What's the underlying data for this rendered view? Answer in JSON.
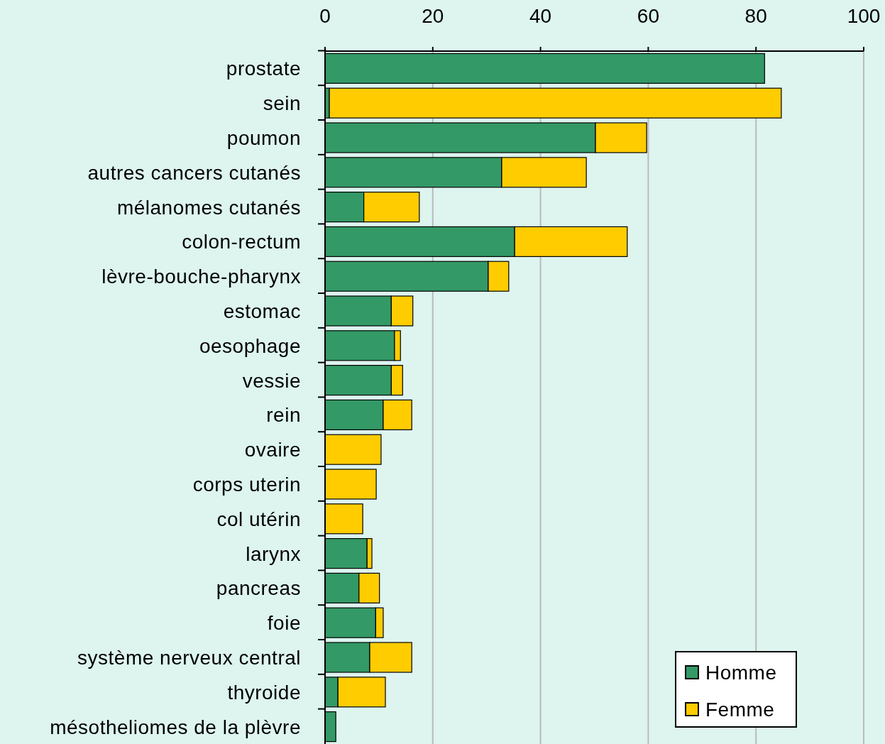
{
  "chart_data": {
    "type": "bar",
    "orientation": "horizontal",
    "stacked": true,
    "categories": [
      "prostate",
      "sein",
      "poumon",
      "autres cancers cutanés",
      "mélanomes cutanés",
      "colon-rectum",
      "lèvre-bouche-pharynx",
      "estomac",
      "oesophage",
      "vessie",
      "rein",
      "ovaire",
      "corps uterin",
      "col utérin",
      "larynx",
      "pancreas",
      "foie",
      "système nerveux central",
      "thyroide",
      "mésotheliomes de la plèvre"
    ],
    "series": [
      {
        "name": "Homme",
        "color": "#339966",
        "values": [
          81.6,
          0.8,
          50.2,
          32.8,
          7.2,
          35.2,
          30.3,
          12.3,
          12.9,
          12.3,
          10.8,
          0,
          0,
          0,
          7.8,
          6.3,
          9.4,
          8.3,
          2.4,
          2.0
        ]
      },
      {
        "name": "Femme",
        "color": "#ffcc00",
        "values": [
          0,
          83.9,
          9.5,
          15.7,
          10.3,
          20.9,
          3.8,
          4.0,
          1.1,
          2.1,
          5.3,
          10.4,
          9.5,
          7.0,
          0.9,
          3.8,
          1.4,
          7.8,
          8.8,
          0
        ]
      }
    ],
    "xlim": [
      0,
      100
    ],
    "xticks": [
      0,
      20,
      40,
      60,
      80,
      100
    ],
    "grid": "x",
    "legend": "bottom right"
  }
}
